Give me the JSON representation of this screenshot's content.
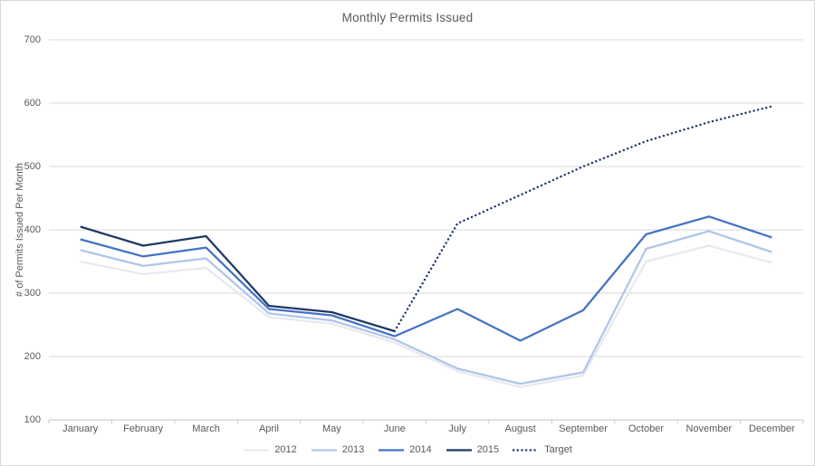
{
  "chart_data": {
    "type": "line",
    "title": "Monthly Permits Issued",
    "ylabel": "# of Permits Issued Per Month",
    "xlabel": "",
    "ylim": [
      100,
      700
    ],
    "ytick_step": 100,
    "grid": "horizontal",
    "legend_position": "bottom",
    "categories": [
      "January",
      "February",
      "March",
      "April",
      "May",
      "June",
      "July",
      "August",
      "September",
      "October",
      "November",
      "December"
    ],
    "series": [
      {
        "name": "2012",
        "color": "#e6e9f0",
        "style": "solid",
        "values": [
          350,
          330,
          340,
          262,
          252,
          222,
          177,
          152,
          170,
          350,
          375,
          348
        ]
      },
      {
        "name": "2013",
        "color": "#b0c5e7",
        "style": "solid",
        "values": [
          368,
          343,
          355,
          268,
          257,
          227,
          181,
          157,
          175,
          370,
          398,
          365
        ]
      },
      {
        "name": "2014",
        "color": "#4472c4",
        "style": "solid",
        "values": [
          385,
          358,
          372,
          275,
          265,
          232,
          275,
          225,
          273,
          393,
          421,
          388
        ]
      },
      {
        "name": "2015",
        "color": "#1f3864",
        "style": "solid",
        "values": [
          405,
          375,
          390,
          280,
          270,
          240,
          null,
          null,
          null,
          null,
          null,
          null
        ]
      },
      {
        "name": "Target",
        "color": "#1f3864",
        "style": "dotted",
        "values": [
          null,
          null,
          null,
          null,
          null,
          240,
          410,
          455,
          500,
          540,
          570,
          595
        ]
      }
    ]
  },
  "colors": {
    "title": "#595959",
    "axis_labels": "#595959",
    "gridline": "#d9d9d9",
    "axis_line": "#c6c6c6",
    "background": "#ffffff",
    "border": "#d9d9d9"
  }
}
